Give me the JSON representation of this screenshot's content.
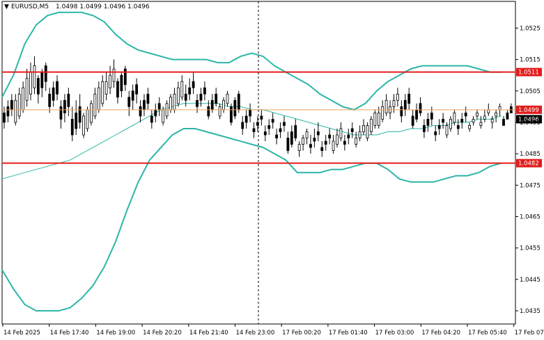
{
  "chart_data": {
    "type": "candlestick",
    "title": "EURUSD,M5",
    "ohlc_header": "1.0498 1.0499 1.0496 1.0496",
    "y_ticks": [
      "1.0525",
      "1.0515",
      "1.0505",
      "1.0495",
      "1.0485",
      "1.0475",
      "1.0465",
      "1.0455",
      "1.0445",
      "1.0435"
    ],
    "ylim": [
      1.04308,
      1.05335
    ],
    "x_ticks": [
      "14 Feb 2025",
      "14 Feb 17:40",
      "14 Feb 19:00",
      "14 Feb 20:20",
      "14 Feb 21:40",
      "14 Feb 23:00",
      "17 Feb 00:20",
      "17 Feb 01:40",
      "17 Feb 03:00",
      "17 Feb 04:20",
      "17 Feb 05:40",
      "17 Feb 07:00"
    ],
    "horizontal_lines": [
      {
        "price": 1.0511,
        "label": "1.0511",
        "color": "#e31c1c"
      },
      {
        "price": 1.0482,
        "label": "1.0482",
        "color": "#e31c1c"
      }
    ],
    "level_lines": [
      {
        "price": 1.0499,
        "label": "1.0499",
        "color": "#f5a05a"
      }
    ],
    "current_price": {
      "price": 1.0496,
      "label": "1.0496",
      "color": "#000000"
    },
    "bollinger_upper": [
      [
        1.0503,
        1.051,
        1.052,
        1.0526,
        1.0529,
        1.053,
        1.053,
        1.053,
        1.0529,
        1.0527,
        1.0523,
        1.052,
        1.0518,
        1.0517,
        1.0516,
        1.0515,
        1.0515,
        1.0515,
        1.0515,
        1.0514,
        1.0514,
        1.0516,
        1.0517,
        1.0516,
        1.0513,
        1.0511,
        1.0509,
        1.0507,
        1.0504,
        1.0502,
        1.05,
        1.0499,
        1.0501,
        1.0505,
        1.0508,
        1.051,
        1.0512,
        1.0513,
        1.0513,
        1.0513,
        1.0513,
        1.0513,
        1.0512,
        1.0511,
        1.0511
      ]
    ],
    "bollinger_middle": [
      1.0477,
      1.0478,
      1.0479,
      1.048,
      1.0481,
      1.0482,
      1.0483,
      1.0485,
      1.0487,
      1.0489,
      1.0491,
      1.0493,
      1.0495,
      1.0497,
      1.0499,
      1.05,
      1.0501,
      1.0501,
      1.0501,
      1.0501,
      1.05,
      1.05,
      1.0499,
      1.0499,
      1.0498,
      1.0497,
      1.0496,
      1.0495,
      1.0494,
      1.0493,
      1.0492,
      1.0491,
      1.0491,
      1.0491,
      1.0492,
      1.0492,
      1.0493,
      1.0493,
      1.0494,
      1.0494,
      1.0495,
      1.0495,
      1.0496,
      1.0496,
      1.0497
    ],
    "bollinger_lower": [
      1.0448,
      1.0442,
      1.0437,
      1.0435,
      1.0435,
      1.0435,
      1.0436,
      1.0439,
      1.0443,
      1.0449,
      1.0457,
      1.0467,
      1.0476,
      1.0483,
      1.0487,
      1.0491,
      1.0493,
      1.0493,
      1.0492,
      1.0491,
      1.049,
      1.0489,
      1.0488,
      1.0487,
      1.0485,
      1.0483,
      1.0479,
      1.0479,
      1.0479,
      1.048,
      1.048,
      1.0481,
      1.0482,
      1.0482,
      1.048,
      1.0477,
      1.0476,
      1.0476,
      1.0476,
      1.0477,
      1.0478,
      1.0478,
      1.0479,
      1.0481,
      1.0482
    ],
    "candles_ohlc": [
      [
        1.05,
        1.0502,
        1.0495,
        1.0497
      ],
      [
        1.0497,
        1.0506,
        1.0496,
        1.0504
      ],
      [
        1.0504,
        1.0514,
        1.0502,
        1.0511
      ],
      [
        1.0511,
        1.0512,
        1.0503,
        1.0506
      ],
      [
        1.0506,
        1.0508,
        1.05,
        1.0502
      ],
      [
        1.0502,
        1.0504,
        1.0495,
        1.0498
      ],
      [
        1.0498,
        1.0502,
        1.0491,
        1.0493
      ],
      [
        1.0493,
        1.05,
        1.0492,
        1.0499
      ],
      [
        1.0499,
        1.0508,
        1.0498,
        1.0506
      ],
      [
        1.0506,
        1.0513,
        1.0504,
        1.051
      ],
      [
        1.051,
        1.0511,
        1.0503,
        1.0505
      ],
      [
        1.0505,
        1.0507,
        1.0499,
        1.0502
      ],
      [
        1.0502,
        1.0504,
        1.0497,
        1.0499
      ],
      [
        1.0499,
        1.0501,
        1.0495,
        1.0497
      ],
      [
        1.0497,
        1.0502,
        1.0496,
        1.0501
      ],
      [
        1.0501,
        1.0508,
        1.05,
        1.0506
      ],
      [
        1.0506,
        1.0509,
        1.0502,
        1.0504
      ],
      [
        1.0504,
        1.0506,
        1.05,
        1.0502
      ],
      [
        1.0502,
        1.0504,
        1.0498,
        1.0499
      ],
      [
        1.0499,
        1.0503,
        1.0498,
        1.0502
      ],
      [
        1.0502,
        1.0503,
        1.0496,
        1.0497
      ],
      [
        1.0497,
        1.0499,
        1.0493,
        1.0495
      ],
      [
        1.0495,
        1.0497,
        1.0492,
        1.0494
      ],
      [
        1.0494,
        1.0496,
        1.0491,
        1.0493
      ],
      [
        1.0493,
        1.0495,
        1.049,
        1.0492
      ],
      [
        1.0492,
        1.0494,
        1.0487,
        1.0488
      ],
      [
        1.0488,
        1.0491,
        1.0486,
        1.049
      ],
      [
        1.049,
        1.0493,
        1.0487,
        1.0489
      ],
      [
        1.0489,
        1.0491,
        1.0486,
        1.0488
      ],
      [
        1.0488,
        1.0493,
        1.0487,
        1.0491
      ],
      [
        1.0491,
        1.0493,
        1.0488,
        1.049
      ],
      [
        1.049,
        1.0494,
        1.0489,
        1.0492
      ],
      [
        1.0492,
        1.0497,
        1.0491,
        1.0496
      ],
      [
        1.0496,
        1.0502,
        1.0495,
        1.05
      ],
      [
        1.05,
        1.0504,
        1.0498,
        1.0502
      ],
      [
        1.0502,
        1.0504,
        1.0497,
        1.0499
      ],
      [
        1.0499,
        1.0501,
        1.0495,
        1.0496
      ],
      [
        1.0496,
        1.0498,
        1.0492,
        1.0494
      ],
      [
        1.0494,
        1.0496,
        1.0491,
        1.0493
      ],
      [
        1.0493,
        1.0497,
        1.0492,
        1.0496
      ],
      [
        1.0496,
        1.0498,
        1.0493,
        1.0495
      ],
      [
        1.0495,
        1.0497,
        1.0494,
        1.0496
      ],
      [
        1.0496,
        1.0499,
        1.0495,
        1.0497
      ],
      [
        1.0497,
        1.0499,
        1.0495,
        1.0498
      ],
      [
        1.0498,
        1.0499,
        1.0496,
        1.0496
      ]
    ]
  }
}
